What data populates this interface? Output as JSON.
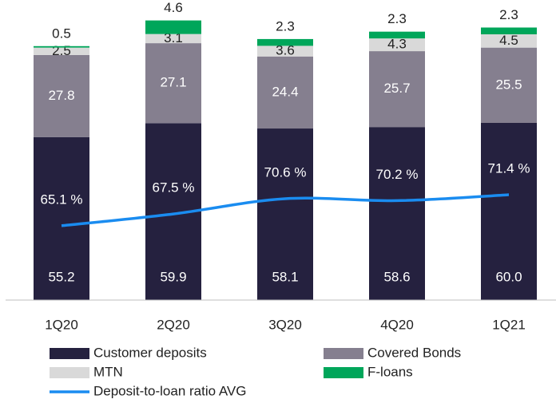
{
  "chart_data": {
    "type": "bar",
    "stacked": true,
    "categories": [
      "1Q20",
      "2Q20",
      "3Q20",
      "4Q20",
      "1Q21"
    ],
    "ylim": [
      0,
      100
    ],
    "y2lim": [
      50,
      110
    ],
    "series": [
      {
        "name": "Customer deposits",
        "color": "#25213f",
        "values": [
          55.2,
          59.9,
          58.1,
          58.6,
          60.0
        ],
        "value_labels": [
          "55.2",
          "59.9",
          "58.1",
          "58.6",
          "60.0"
        ]
      },
      {
        "name": "Covered Bonds",
        "color": "#857f8f",
        "values": [
          27.8,
          27.1,
          24.4,
          25.7,
          25.5
        ]
      },
      {
        "name": "MTN",
        "color": "#d9d9d9",
        "values": [
          2.5,
          3.1,
          3.6,
          4.3,
          4.5
        ]
      },
      {
        "name": "F-loans",
        "color": "#00a65a",
        "values": [
          0.5,
          4.6,
          2.3,
          2.3,
          2.3
        ]
      },
      {
        "name": "Deposit-to-loan ratio AVG",
        "type": "line",
        "axis": "y2",
        "color": "#1a8cf0",
        "values": [
          65.1,
          67.5,
          70.6,
          70.2,
          71.4
        ],
        "value_labels": [
          "65.1 %",
          "67.5 %",
          "70.6 %",
          "70.2 %",
          "71.4 %"
        ]
      }
    ]
  }
}
